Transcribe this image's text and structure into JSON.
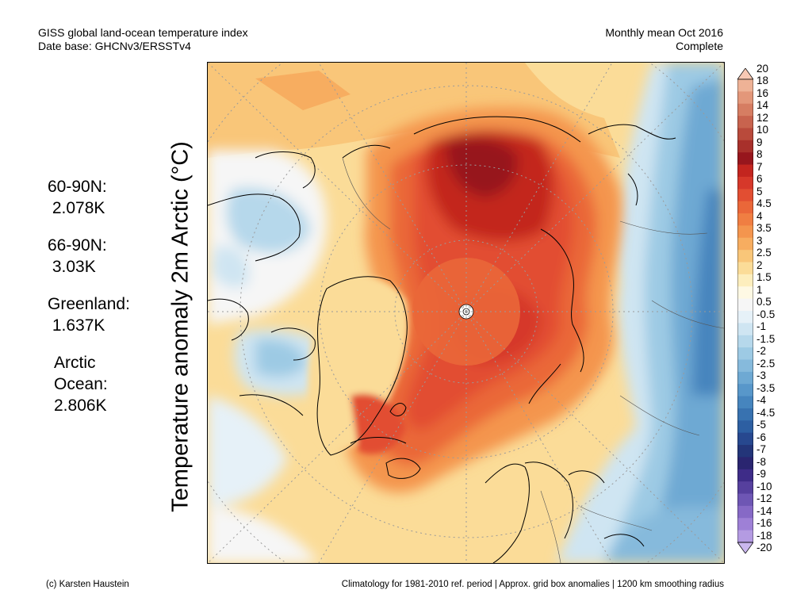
{
  "header": {
    "title_line1": "GISS global land-ocean temperature index",
    "title_line2": "Date base: GHCNv3/ERSSTv4",
    "period_line1": "Monthly mean Oct 2016",
    "period_line2": "Complete"
  },
  "stats": [
    {
      "label": "60-90N:",
      "value": " 2.078K"
    },
    {
      "label": "66-90N:",
      "value": " 3.03K"
    },
    {
      "label": "Greenland:",
      "value": " 1.637K"
    },
    {
      "label": "Arctic",
      "label2": "Ocean:",
      "value": "2.806K"
    }
  ],
  "axis_label": "Temperature anomaly 2m Arctic (°C)",
  "colorbar": {
    "ticks": [
      "20",
      "18",
      "16",
      "14",
      "12",
      "10",
      "9",
      "8",
      "7",
      "6",
      "5",
      "4.5",
      "4",
      "3.5",
      "3",
      "2.5",
      "2",
      "1.5",
      "1",
      "0.5",
      "-0.5",
      "-1",
      "-1.5",
      "-2",
      "-2.5",
      "-3",
      "-3.5",
      "-4",
      "-4.5",
      "-5",
      "-6",
      "-7",
      "-8",
      "-9",
      "-10",
      "-12",
      "-14",
      "-16",
      "-18",
      "-20"
    ],
    "colors": [
      "#f7c9b4",
      "#eeb296",
      "#e3977a",
      "#d67d62",
      "#c8634e",
      "#b94a3b",
      "#a8302b",
      "#97161d",
      "#c3251f",
      "#d6382a",
      "#e24e32",
      "#ea6739",
      "#f07e42",
      "#f4954e",
      "#f7ad60",
      "#f9c679",
      "#fbdc98",
      "#fdeebd",
      "#fef9e4",
      "#f6f6f6",
      "#e6f1f8",
      "#cfe5f2",
      "#b6d8eb",
      "#9dcae4",
      "#86badc",
      "#6ea9d3",
      "#5897ca",
      "#4685be",
      "#3872b0",
      "#2d5fa2",
      "#27488f",
      "#233579",
      "#2a2570",
      "#3e2c88",
      "#56409e",
      "#6e56b4",
      "#8669c6",
      "#9e80d6",
      "#b49be2",
      "#cab7ee"
    ]
  },
  "footer": {
    "credit": "(c) Karsten Haustein",
    "note": "Climatology for 1981-2010 ref. period | Approx. grid box anomalies | 1200 km smoothing radius"
  }
}
